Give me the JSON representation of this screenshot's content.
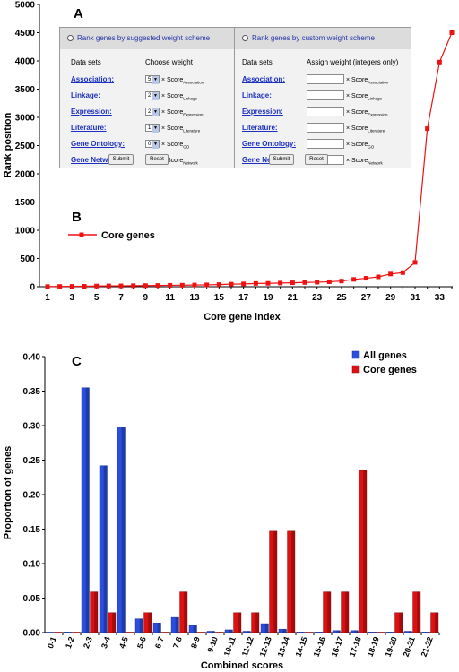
{
  "panel_labels": {
    "a": "A",
    "b": "B",
    "c": "C"
  },
  "weight_panel": {
    "left_header": "Rank genes by suggested weight scheme",
    "right_header": "Rank genes by custom weight scheme",
    "data_sets_label": "Data sets",
    "choose_weight_label": "Choose weight",
    "assign_weight_label": "Assign weight (integers only)",
    "times_score": "× Score",
    "rows": [
      {
        "name": "Association:",
        "weight": "5",
        "sub": "Association"
      },
      {
        "name": "Linkage:",
        "weight": "2",
        "sub": "Linkage"
      },
      {
        "name": "Expression:",
        "weight": "2",
        "sub": "Expression"
      },
      {
        "name": "Literature:",
        "weight": "1",
        "sub": "Literature"
      },
      {
        "name": "Gene Ontology:",
        "weight": "0",
        "sub": "GO"
      },
      {
        "name": "Gene Network:",
        "weight": "0",
        "sub": "Network"
      }
    ],
    "submit_label": "Submit",
    "reset_label": "Reset"
  },
  "chart_data": [
    {
      "type": "line",
      "xlabel": "Core gene index",
      "ylabel": "Rank position",
      "ylim": [
        0,
        5000
      ],
      "yticks": [
        "0",
        "500",
        "1000",
        "1500",
        "2000",
        "2500",
        "3000",
        "3500",
        "4000",
        "4500",
        "5000"
      ],
      "xticks": [
        "1",
        "3",
        "5",
        "7",
        "9",
        "11",
        "13",
        "15",
        "17",
        "19",
        "21",
        "23",
        "25",
        "27",
        "29",
        "31",
        "33"
      ],
      "xlim": [
        1,
        34
      ],
      "legend": "left",
      "color": "#ee1111",
      "series": [
        {
          "name": "Core genes",
          "x": [
            1,
            2,
            3,
            4,
            5,
            6,
            7,
            8,
            9,
            10,
            11,
            12,
            13,
            14,
            15,
            16,
            17,
            18,
            19,
            20,
            21,
            22,
            23,
            24,
            25,
            26,
            27,
            28,
            29,
            30,
            31,
            32,
            33,
            34
          ],
          "values": [
            3,
            5,
            6,
            8,
            12,
            14,
            15,
            18,
            20,
            22,
            25,
            27,
            30,
            33,
            38,
            45,
            50,
            58,
            60,
            65,
            70,
            75,
            80,
            88,
            100,
            130,
            150,
            175,
            225,
            250,
            430,
            2800,
            3980,
            4500
          ]
        }
      ]
    },
    {
      "type": "bar",
      "xlabel": "Combined scores",
      "ylabel": "Proportion of genes",
      "ylim": [
        0,
        0.4
      ],
      "yticks": [
        "0.00",
        "0.05",
        "0.10",
        "0.15",
        "0.20",
        "0.25",
        "0.30",
        "0.35",
        "0.40"
      ],
      "legend": "top-right",
      "categories": [
        "0-1",
        "1-2",
        "2-3",
        "3-4",
        "4-5",
        "5-6",
        "6-7",
        "7-8",
        "8-9",
        "9-10",
        "10-11",
        "11-12",
        "12-13",
        "13-14",
        "14-15",
        "15-16",
        "16-17",
        "17-18",
        "18-19",
        "19-20",
        "20-21",
        "21-22"
      ],
      "series": [
        {
          "name": "All genes",
          "color": "#2a4fe0",
          "values": [
            0.0,
            0.001,
            0.355,
            0.242,
            0.297,
            0.02,
            0.014,
            0.022,
            0.01,
            0.002,
            0.004,
            0.002,
            0.013,
            0.005,
            0.001,
            0.001,
            0.003,
            0.003,
            0.001,
            0.001,
            0.002,
            0.001
          ]
        },
        {
          "name": "Core genes",
          "color": "#dd1111",
          "values": [
            0.0,
            0.0,
            0.059,
            0.029,
            0.0,
            0.029,
            0.0,
            0.059,
            0.0,
            0.0,
            0.029,
            0.029,
            0.147,
            0.147,
            0.0,
            0.059,
            0.059,
            0.235,
            0.0,
            0.029,
            0.059,
            0.029
          ]
        }
      ]
    }
  ]
}
